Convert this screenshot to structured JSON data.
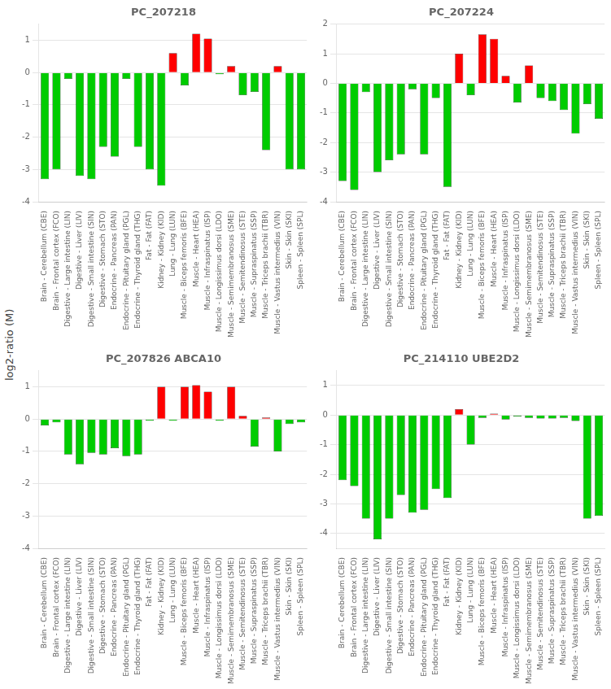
{
  "ylabel": "log2-ratio (M)",
  "chart_data": [
    {
      "type": "bar",
      "title": "PC_207218",
      "categories": [
        "Brain - Cerebellum (CBE)",
        "Brain - Frontal cortex (FCO)",
        "Digestive - Large intestine (LIN)",
        "Digestive - Liver (LIV)",
        "Digestive - Small intestine (SIN)",
        "Digestive - Stomach (STO)",
        "Endocrine - Pancreas (PAN)",
        "Endocrine - Pituitary gland (PGL)",
        "Endocrine - Thyroid gland (THG)",
        "Fat - Fat (FAT)",
        "Kidney - Kidney (KID)",
        "Lung - Lung (LUN)",
        "Muscle - Biceps femoris (BFE)",
        "Muscle - Heart (HEA)",
        "Muscle - Infraspinatus (ISP)",
        "Muscle - Longissimus dorsi (LDO)",
        "Muscle - Semimembranosus (SME)",
        "Muscle - Semitendinosus (STE)",
        "Muscle - Supraspinatus (SSP)",
        "Muscle - Triceps brachii (TBR)",
        "Muscle - Vastus intermedius (VIN)",
        "Skin - Skin (SKI)",
        "Spleen - Spleen (SPL)"
      ],
      "values": [
        -3.3,
        -3.0,
        -0.2,
        -3.2,
        -3.3,
        -2.3,
        -2.6,
        -0.2,
        -2.3,
        -3.0,
        -3.5,
        0.6,
        -0.4,
        1.2,
        1.05,
        -0.05,
        0.2,
        -0.7,
        -0.6,
        -2.4,
        0.2,
        -3.0,
        -3.0
      ],
      "colors": [
        "#00cc00",
        "#00cc00",
        "#00cc00",
        "#00cc00",
        "#00cc00",
        "#00cc00",
        "#00cc00",
        "#00cc00",
        "#00cc00",
        "#00cc00",
        "#00cc00",
        "#ff0000",
        "#00cc00",
        "#ff0000",
        "#ff0000",
        "#00cc00",
        "#ff0000",
        "#00cc00",
        "#00cc00",
        "#00cc00",
        "#ff0000",
        "#00cc00",
        "#00cc00"
      ],
      "ylim": [
        -4,
        1.5
      ],
      "yticks": [
        -4,
        -3,
        -2,
        -1,
        0,
        1
      ],
      "grid": true
    },
    {
      "type": "bar",
      "title": "PC_207224",
      "categories": [
        "Brain - Cerebellum (CBE)",
        "Brain - Frontal cortex (FCO)",
        "Digestive - Large intestine (LIN)",
        "Digestive - Liver (LIV)",
        "Digestive - Small intestine (SIN)",
        "Digestive - Stomach (STO)",
        "Endocrine - Pancreas (PAN)",
        "Endocrine - Pituitary gland (PGL)",
        "Endocrine - Thyroid gland (THG)",
        "Fat - Fat (FAT)",
        "Kidney - Kidney (KID)",
        "Lung - Lung (LUN)",
        "Muscle - Biceps femoris (BFE)",
        "Muscle - Heart (HEA)",
        "Muscle - Infraspinatus (ISP)",
        "Muscle - Longissimus dorsi (LDO)",
        "Muscle - Semimembranosus (SME)",
        "Muscle - Semitendinosus (STE)",
        "Muscle - Supraspinatus (SSP)",
        "Muscle - Triceps brachii (TBR)",
        "Muscle - Vastus intermedius (VIN)",
        "Skin - Skin (SKI)",
        "Spleen - Spleen (SPL)"
      ],
      "values": [
        -3.3,
        -3.6,
        -0.3,
        -3.0,
        -2.6,
        -2.4,
        -0.2,
        -2.4,
        -0.5,
        -3.5,
        1.0,
        -0.4,
        1.65,
        1.5,
        0.25,
        -0.65,
        0.6,
        -0.5,
        -0.6,
        -0.9,
        -1.7,
        -0.7,
        -1.2
      ],
      "colors": [
        "#00cc00",
        "#00cc00",
        "#00cc00",
        "#00cc00",
        "#00cc00",
        "#00cc00",
        "#00cc00",
        "#00cc00",
        "#00cc00",
        "#00cc00",
        "#ff0000",
        "#00cc00",
        "#ff0000",
        "#ff0000",
        "#ff0000",
        "#00cc00",
        "#ff0000",
        "#00cc00",
        "#00cc00",
        "#00cc00",
        "#00cc00",
        "#00cc00",
        "#00cc00"
      ],
      "ylim": [
        -4,
        2.0
      ],
      "yticks": [
        -4,
        -3,
        -2,
        -1,
        0,
        1,
        2
      ],
      "grid": true
    },
    {
      "type": "bar",
      "title": "PC_207826 ABCA10",
      "categories": [
        "Brain - Cerebellum (CBE)",
        "Brain - Frontal cortex (FCO)",
        "Digestive - Large intestine (LIN)",
        "Digestive - Liver (LIV)",
        "Digestive - Small intestine (SIN)",
        "Digestive - Stomach (STO)",
        "Endocrine - Pancreas (PAN)",
        "Endocrine - Pituitary gland (PGL)",
        "Endocrine - Thyroid gland (THG)",
        "Fat - Fat (FAT)",
        "Kidney - Kidney (KID)",
        "Lung - Lung (LUN)",
        "Muscle - Biceps femoris (BFE)",
        "Muscle - Heart (HEA)",
        "Muscle - Infraspinatus (ISP)",
        "Muscle - Longissimus dorsi (LDO)",
        "Muscle - Semimembranosus (SME)",
        "Muscle - Semitendinosus (STE)",
        "Muscle - Supraspinatus (SSP)",
        "Muscle - Triceps brachii (TBR)",
        "Muscle - Vastus intermedius (VIN)",
        "Skin - Skin (SKI)",
        "Spleen - Spleen (SPL)"
      ],
      "values": [
        -0.2,
        -0.1,
        -1.1,
        -1.4,
        -1.05,
        -1.1,
        -0.9,
        -1.15,
        -1.1,
        -0.05,
        1.0,
        -0.05,
        1.0,
        1.05,
        0.85,
        -0.05,
        1.0,
        0.1,
        -0.85,
        0.05,
        -1.0,
        -0.15,
        -0.1
      ],
      "colors": [
        "#00cc00",
        "#00cc00",
        "#00cc00",
        "#00cc00",
        "#00cc00",
        "#00cc00",
        "#00cc00",
        "#00cc00",
        "#00cc00",
        "#00cc00",
        "#ff0000",
        "#00cc00",
        "#ff0000",
        "#ff0000",
        "#ff0000",
        "#00cc00",
        "#ff0000",
        "#ff0000",
        "#00cc00",
        "#ff0000",
        "#00cc00",
        "#00cc00",
        "#00cc00"
      ],
      "ylim": [
        -4,
        1.5
      ],
      "yticks": [
        -4,
        -3,
        -2,
        -1,
        0,
        1
      ],
      "grid": true
    },
    {
      "type": "bar",
      "title": "PC_214110 UBE2D2",
      "categories": [
        "Brain - Cerebellum (CBE)",
        "Brain - Frontal cortex (FCO)",
        "Digestive - Large intestine (LIN)",
        "Digestive - Liver (LIV)",
        "Digestive - Small intestine (SIN)",
        "Digestive - Stomach (STO)",
        "Endocrine - Pancreas (PAN)",
        "Endocrine - Pituitary gland (PGL)",
        "Endocrine - Thyroid gland (THG)",
        "Fat - Fat (FAT)",
        "Kidney - Kidney (KID)",
        "Lung - Lung (LUN)",
        "Muscle - Biceps femoris (BFE)",
        "Muscle - Heart (HEA)",
        "Muscle - Infraspinatus (ISP)",
        "Muscle - Longissimus dorsi (LDO)",
        "Muscle - Semimembranosus (SME)",
        "Muscle - Semitendinosus (STE)",
        "Muscle - Supraspinatus (SSP)",
        "Muscle - Triceps brachii (TBR)",
        "Muscle - Vastus intermedius (VIN)",
        "Skin - Skin (SKI)",
        "Spleen - Spleen (SPL)"
      ],
      "values": [
        -2.2,
        -2.4,
        -3.5,
        -4.2,
        -3.5,
        -2.7,
        -3.3,
        -3.2,
        -2.5,
        -2.8,
        0.2,
        -1.0,
        -0.1,
        0.05,
        -0.15,
        -0.05,
        -0.1,
        -0.12,
        -0.12,
        -0.1,
        -0.2,
        -3.5,
        -3.4
      ],
      "colors": [
        "#00cc00",
        "#00cc00",
        "#00cc00",
        "#00cc00",
        "#00cc00",
        "#00cc00",
        "#00cc00",
        "#00cc00",
        "#00cc00",
        "#00cc00",
        "#ff0000",
        "#00cc00",
        "#00cc00",
        "#ff0000",
        "#00cc00",
        "#00cc00",
        "#00cc00",
        "#00cc00",
        "#00cc00",
        "#00cc00",
        "#00cc00",
        "#00cc00",
        "#00cc00"
      ],
      "ylim": [
        -4.5,
        1.5
      ],
      "yticks": [
        -4,
        -3,
        -2,
        -1,
        0,
        1
      ],
      "grid": true
    }
  ]
}
